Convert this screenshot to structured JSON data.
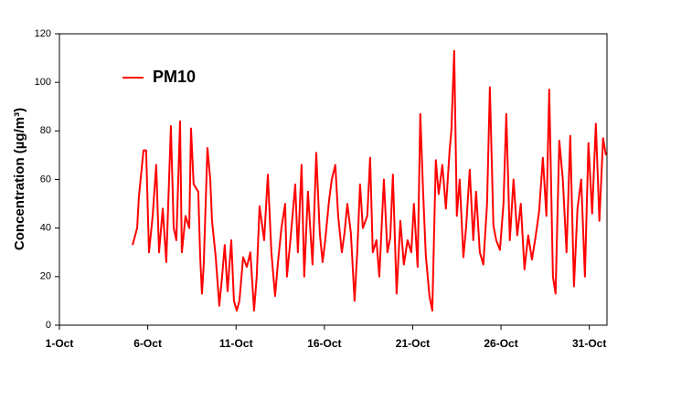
{
  "chart_data": {
    "type": "line",
    "ylabel": "Concentration (µg/m³)",
    "xlim": [
      1,
      32
    ],
    "ylim": [
      0,
      120
    ],
    "xticks": [
      {
        "value": 1,
        "label": "1-Oct"
      },
      {
        "value": 6,
        "label": "6-Oct"
      },
      {
        "value": 11,
        "label": "11-Oct"
      },
      {
        "value": 16,
        "label": "16-Oct"
      },
      {
        "value": 21,
        "label": "21-Oct"
      },
      {
        "value": 26,
        "label": "26-Oct"
      },
      {
        "value": 31,
        "label": "31-Oct"
      }
    ],
    "yticks": [
      0,
      20,
      40,
      60,
      80,
      100,
      120
    ],
    "legend": "upper left",
    "x": [
      5.14,
      5.4,
      5.5,
      5.76,
      5.91,
      6.07,
      6.28,
      6.48,
      6.64,
      6.85,
      7.05,
      7.31,
      7.47,
      7.62,
      7.83,
      7.93,
      8.14,
      8.35,
      8.45,
      8.6,
      8.86,
      8.97,
      9.07,
      9.17,
      9.38,
      9.54,
      9.64,
      9.85,
      10.05,
      10.21,
      10.36,
      10.52,
      10.73,
      10.88,
      11.04,
      11.19,
      11.4,
      11.61,
      11.81,
      12.02,
      12.17,
      12.33,
      12.59,
      12.8,
      13.0,
      13.21,
      13.36,
      13.57,
      13.78,
      13.88,
      14.09,
      14.35,
      14.5,
      14.71,
      14.86,
      15.07,
      15.33,
      15.54,
      15.74,
      15.9,
      16.05,
      16.26,
      16.42,
      16.62,
      16.78,
      16.99,
      17.14,
      17.3,
      17.5,
      17.71,
      17.86,
      18.02,
      18.18,
      18.43,
      18.59,
      18.74,
      18.95,
      19.11,
      19.37,
      19.57,
      19.73,
      19.88,
      20.09,
      20.3,
      20.5,
      20.71,
      20.92,
      21.07,
      21.28,
      21.43,
      21.59,
      21.74,
      21.95,
      22.11,
      22.31,
      22.47,
      22.68,
      22.88,
      23.09,
      23.19,
      23.35,
      23.5,
      23.66,
      23.87,
      24.02,
      24.23,
      24.43,
      24.59,
      24.8,
      25.0,
      25.21,
      25.37,
      25.57,
      25.73,
      25.94,
      26.14,
      26.3,
      26.5,
      26.71,
      26.92,
      27.12,
      27.33,
      27.54,
      27.75,
      27.95,
      28.16,
      28.37,
      28.57,
      28.73,
      28.94,
      29.09,
      29.3,
      29.5,
      29.71,
      29.92,
      30.13,
      30.33,
      30.54,
      30.75,
      30.95,
      31.16,
      31.37,
      31.57,
      31.78,
      31.94
    ],
    "series": [
      {
        "name": "PM10",
        "color": "#ff0000",
        "values": [
          33,
          40,
          53,
          72,
          72,
          30,
          45,
          66,
          30,
          48,
          26,
          82,
          40,
          35,
          84,
          30,
          45,
          40,
          81,
          58,
          55,
          28,
          13,
          25,
          73,
          60,
          43,
          28,
          8,
          20,
          33,
          14,
          35,
          10,
          6,
          10,
          28,
          24,
          30,
          6,
          20,
          49,
          35,
          62,
          30,
          12,
          25,
          40,
          50,
          20,
          36,
          58,
          30,
          66,
          20,
          55,
          25,
          71,
          38,
          26,
          35,
          51,
          60,
          66,
          45,
          30,
          38,
          50,
          38,
          10,
          30,
          58,
          40,
          45,
          69,
          30,
          35,
          20,
          60,
          30,
          36,
          62,
          13,
          43,
          25,
          35,
          30,
          50,
          24,
          87,
          55,
          29,
          12,
          6,
          68,
          54,
          66,
          48,
          72,
          80,
          113,
          45,
          60,
          28,
          40,
          64,
          35,
          55,
          30,
          25,
          50,
          98,
          41,
          35,
          31,
          50,
          87,
          35,
          60,
          37,
          50,
          23,
          37,
          27,
          36,
          47,
          69,
          45,
          97,
          20,
          13,
          76,
          60,
          30,
          78,
          16,
          48,
          60,
          20,
          75,
          46,
          83,
          43,
          77,
          70
        ]
      }
    ]
  }
}
